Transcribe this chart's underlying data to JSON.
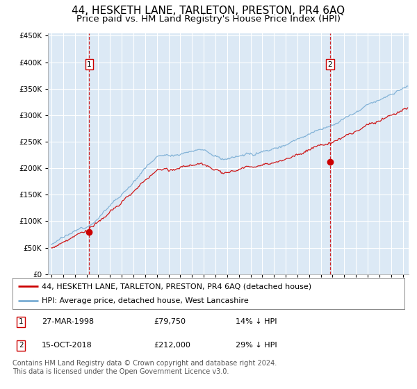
{
  "title": "44, HESKETH LANE, TARLETON, PRESTON, PR4 6AQ",
  "subtitle": "Price paid vs. HM Land Registry's House Price Index (HPI)",
  "title_fontsize": 11,
  "subtitle_fontsize": 9.5,
  "background_color": "#ffffff",
  "plot_bg_color": "#dce9f5",
  "grid_color": "#ffffff",
  "line_color_property": "#cc0000",
  "line_color_hpi": "#7aadd4",
  "purchase1_date": 1998.23,
  "purchase1_price": 79750,
  "purchase1_label": "1",
  "purchase2_date": 2018.79,
  "purchase2_price": 212000,
  "purchase2_label": "2",
  "legend_line1": "44, HESKETH LANE, TARLETON, PRESTON, PR4 6AQ (detached house)",
  "legend_line2": "HPI: Average price, detached house, West Lancashire",
  "table_row1": [
    "1",
    "27-MAR-1998",
    "£79,750",
    "14% ↓ HPI"
  ],
  "table_row2": [
    "2",
    "15-OCT-2018",
    "£212,000",
    "29% ↓ HPI"
  ],
  "footer": "Contains HM Land Registry data © Crown copyright and database right 2024.\nThis data is licensed under the Open Government Licence v3.0.",
  "ylim": [
    0,
    455000
  ],
  "xlim_start": 1994.7,
  "xlim_end": 2025.5
}
